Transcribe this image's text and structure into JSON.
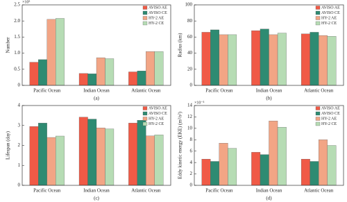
{
  "chart_data": [
    {
      "type": "bar",
      "y_label": "Number",
      "y_multiplier": "×10⁵",
      "x_label": "(a)",
      "categories": [
        "Pacific Ocean",
        "Indian Ocean",
        "Atlantic Ocean"
      ],
      "ylim": [
        0,
        2.5
      ],
      "yticks": [
        0,
        0.5,
        {
          "value": 1,
          "label": "1.0"
        },
        1.5,
        {
          "value": 2,
          "label": "2.0"
        },
        2.5
      ],
      "legend": "top-right",
      "series": [
        {
          "name": "AVISO AE",
          "color": "#f05a46",
          "values": [
            0.72,
            0.37,
            0.42
          ]
        },
        {
          "name": "AVISO CE",
          "color": "#2e8b72",
          "values": [
            0.8,
            0.36,
            0.45
          ]
        },
        {
          "name": "HY-2 AE",
          "color": "#f2a585",
          "values": [
            2.05,
            0.86,
            1.05
          ]
        },
        {
          "name": "HY-2 CE",
          "color": "#b6dcb4",
          "values": [
            2.08,
            0.83,
            1.05
          ]
        }
      ]
    },
    {
      "type": "bar",
      "y_label": "Radius (km)",
      "x_label": "(b)",
      "categories": [
        "Pacific Ocean",
        "Indian Ocean",
        "Atlantic Ocean"
      ],
      "ylim": [
        0,
        100
      ],
      "yticks": [
        0,
        20,
        40,
        60,
        80,
        100
      ],
      "legend": "top-right",
      "series": [
        {
          "name": "AVISO AE",
          "color": "#f05a46",
          "values": [
            66,
            68,
            64
          ]
        },
        {
          "name": "AVISO CE",
          "color": "#2e8b72",
          "values": [
            69,
            70,
            66
          ]
        },
        {
          "name": "HY-2 AE",
          "color": "#f2a585",
          "values": [
            63,
            63,
            62
          ]
        },
        {
          "name": "HY-2 CE",
          "color": "#b6dcb4",
          "values": [
            63,
            65,
            61
          ]
        }
      ]
    },
    {
      "type": "bar",
      "y_label": "Lifespan (day)",
      "x_label": "(c)",
      "categories": [
        "Pacific Ocean",
        "Indian Ocean",
        "Atlantic Ocean"
      ],
      "ylim": [
        0,
        4
      ],
      "yticks": [
        0,
        1,
        2,
        3,
        4
      ],
      "legend": "top-right",
      "series": [
        {
          "name": "AVISO AE",
          "color": "#f05a46",
          "values": [
            2.95,
            3.42,
            3.12
          ]
        },
        {
          "name": "AVISO CE",
          "color": "#2e8b72",
          "values": [
            3.12,
            3.32,
            3.26
          ]
        },
        {
          "name": "HY-2 AE",
          "color": "#f2a585",
          "values": [
            2.4,
            2.88,
            2.48
          ]
        },
        {
          "name": "HY-2 CE",
          "color": "#b6dcb4",
          "values": [
            2.47,
            2.83,
            2.53
          ]
        }
      ]
    },
    {
      "type": "bar",
      "y_label": "Eddy kinetic energy (EKE) (m²/s²)",
      "y_multiplier": "×10⁻³",
      "x_label": "(d)",
      "categories": [
        "Pacific Ocean",
        "Indian Ocean",
        "Atlantic Ocean"
      ],
      "ylim": [
        0,
        14
      ],
      "yticks": [
        0,
        2,
        4,
        6,
        8,
        10,
        12,
        14
      ],
      "legend": "top-right",
      "series": [
        {
          "name": "AVISO AE",
          "color": "#f05a46",
          "values": [
            4.6,
            5.8,
            4.6
          ]
        },
        {
          "name": "AVISO CE",
          "color": "#2e8b72",
          "values": [
            4.2,
            5.4,
            4.2
          ]
        },
        {
          "name": "HY-2 AE",
          "color": "#f2a585",
          "values": [
            7.4,
            11.3,
            8.0
          ]
        },
        {
          "name": "HY-2 CE",
          "color": "#b6dcb4",
          "values": [
            6.5,
            10.2,
            7.0
          ]
        }
      ]
    }
  ]
}
